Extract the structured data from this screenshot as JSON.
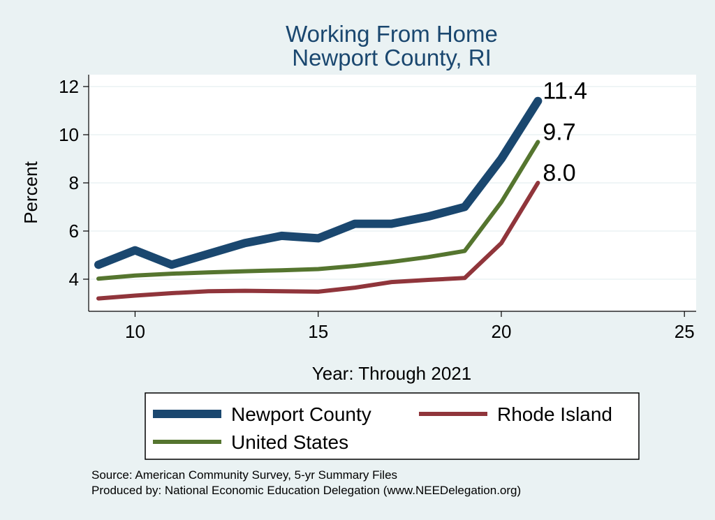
{
  "chart_data": {
    "type": "line",
    "title_line1": "Working From Home",
    "title_line2": "Newport County, RI",
    "xlabel": "Year: Through 2021",
    "ylabel": "Percent",
    "xlim": [
      8.8,
      25.3
    ],
    "ylim": [
      3.0,
      12.5
    ],
    "x_ticks": [
      10,
      15,
      20,
      25
    ],
    "y_ticks": [
      4,
      6,
      8,
      10,
      12
    ],
    "grid": true,
    "legend_position": "bottom",
    "series": [
      {
        "name": "Newport County",
        "color": "#1a476f",
        "x": [
          9,
          10,
          11,
          12,
          13,
          14,
          15,
          16,
          17,
          18,
          19,
          20,
          21
        ],
        "values": [
          4.6,
          5.2,
          4.6,
          5.05,
          5.5,
          5.8,
          5.7,
          6.3,
          6.3,
          6.6,
          7.0,
          9.0,
          11.4
        ],
        "end_label": "11.4"
      },
      {
        "name": "Rhode Island",
        "color": "#90353b",
        "x": [
          9,
          10,
          11,
          12,
          13,
          14,
          15,
          16,
          17,
          18,
          19,
          20,
          21
        ],
        "values": [
          3.2,
          3.32,
          3.42,
          3.5,
          3.52,
          3.5,
          3.48,
          3.65,
          3.88,
          3.97,
          4.05,
          5.5,
          8.0
        ],
        "end_label": "8.0"
      },
      {
        "name": "United States",
        "color": "#55752f",
        "x": [
          9,
          10,
          11,
          12,
          13,
          14,
          15,
          16,
          17,
          18,
          19,
          20,
          21
        ],
        "values": [
          4.02,
          4.15,
          4.23,
          4.28,
          4.33,
          4.37,
          4.42,
          4.55,
          4.72,
          4.92,
          5.17,
          7.2,
          9.7
        ],
        "end_label": "9.7"
      }
    ],
    "notes": [
      "Source: American Community Survey, 5-yr Summary Files",
      "Produced by: National Economic Education Delegation (www.NEEDelegation.org)"
    ]
  }
}
